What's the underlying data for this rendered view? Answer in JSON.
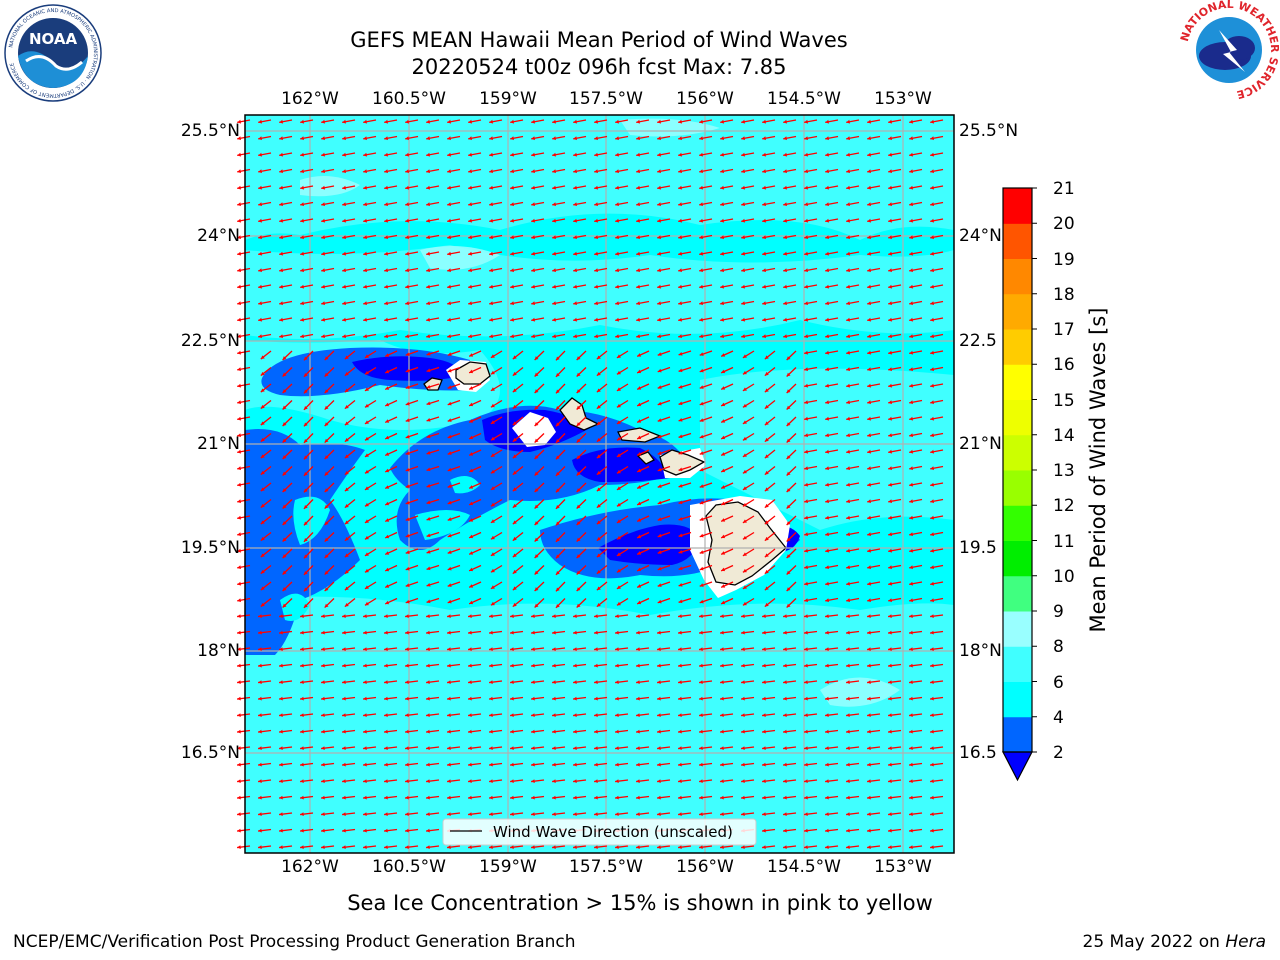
{
  "title": {
    "line1": "GEFS MEAN Hawaii Mean Period of Wind Waves",
    "line2": "20220524 t00z 096h fcst   Max: 7.85"
  },
  "logos": {
    "left": "NOAA",
    "left_ring": "NATIONAL OCEANIC AND ATMOSPHERIC ADMINISTRATION · U.S. DEPARTMENT OF COMMERCE",
    "right_ring": "NATIONAL WEATHER SERVICE"
  },
  "map": {
    "lon_ticks": [
      "162°W",
      "160.5°W",
      "159°W",
      "157.5°W",
      "156°W",
      "154.5°W",
      "153°W"
    ],
    "lat_ticks_left": [
      "25.5°N",
      "24°N",
      "22.5°N",
      "21°N",
      "19.5°N",
      "18°N",
      "16.5°N"
    ],
    "lat_ticks_right": [
      "25.5°N",
      "24°N",
      "22.5",
      "21°N",
      "19.5",
      "18°N",
      "16.5"
    ],
    "lon_range": [
      -163,
      -152.2
    ],
    "lat_range": [
      15.2,
      25.8
    ],
    "ocean_color": "#00ffff",
    "arrow_color": "#ff0000",
    "legend": "Wind Wave Direction (unscaled)"
  },
  "colorbar": {
    "label": "Mean Period of Wind Waves [s]",
    "tick_labels": [
      "21",
      "20",
      "19",
      "18",
      "17",
      "16",
      "15",
      "14",
      "13",
      "12",
      "11",
      "10",
      "9",
      "8",
      "6",
      "4",
      "2"
    ],
    "levels": [
      2,
      4,
      6,
      8,
      9,
      10,
      11,
      12,
      13,
      14,
      15,
      16,
      17,
      18,
      19,
      20,
      21
    ],
    "colors": [
      "#0066ff",
      "#00ffff",
      "#40ffff",
      "#99ffff",
      "#40ff80",
      "#00ee00",
      "#33ff00",
      "#99ff00",
      "#ccff00",
      "#eeff00",
      "#ffff00",
      "#ffcc00",
      "#ffaa00",
      "#ff8800",
      "#ff5500",
      "#ff2200"
    ],
    "top_color": "#ff0000",
    "under_color": "#0000ff"
  },
  "note": "Sea Ice Concentration > 15% is shown in pink to yellow",
  "footer": {
    "left": "NCEP/EMC/Verification Post Processing Product Generation Branch",
    "right_prefix": "25 May 2022 on ",
    "right_italic": "Hera"
  }
}
